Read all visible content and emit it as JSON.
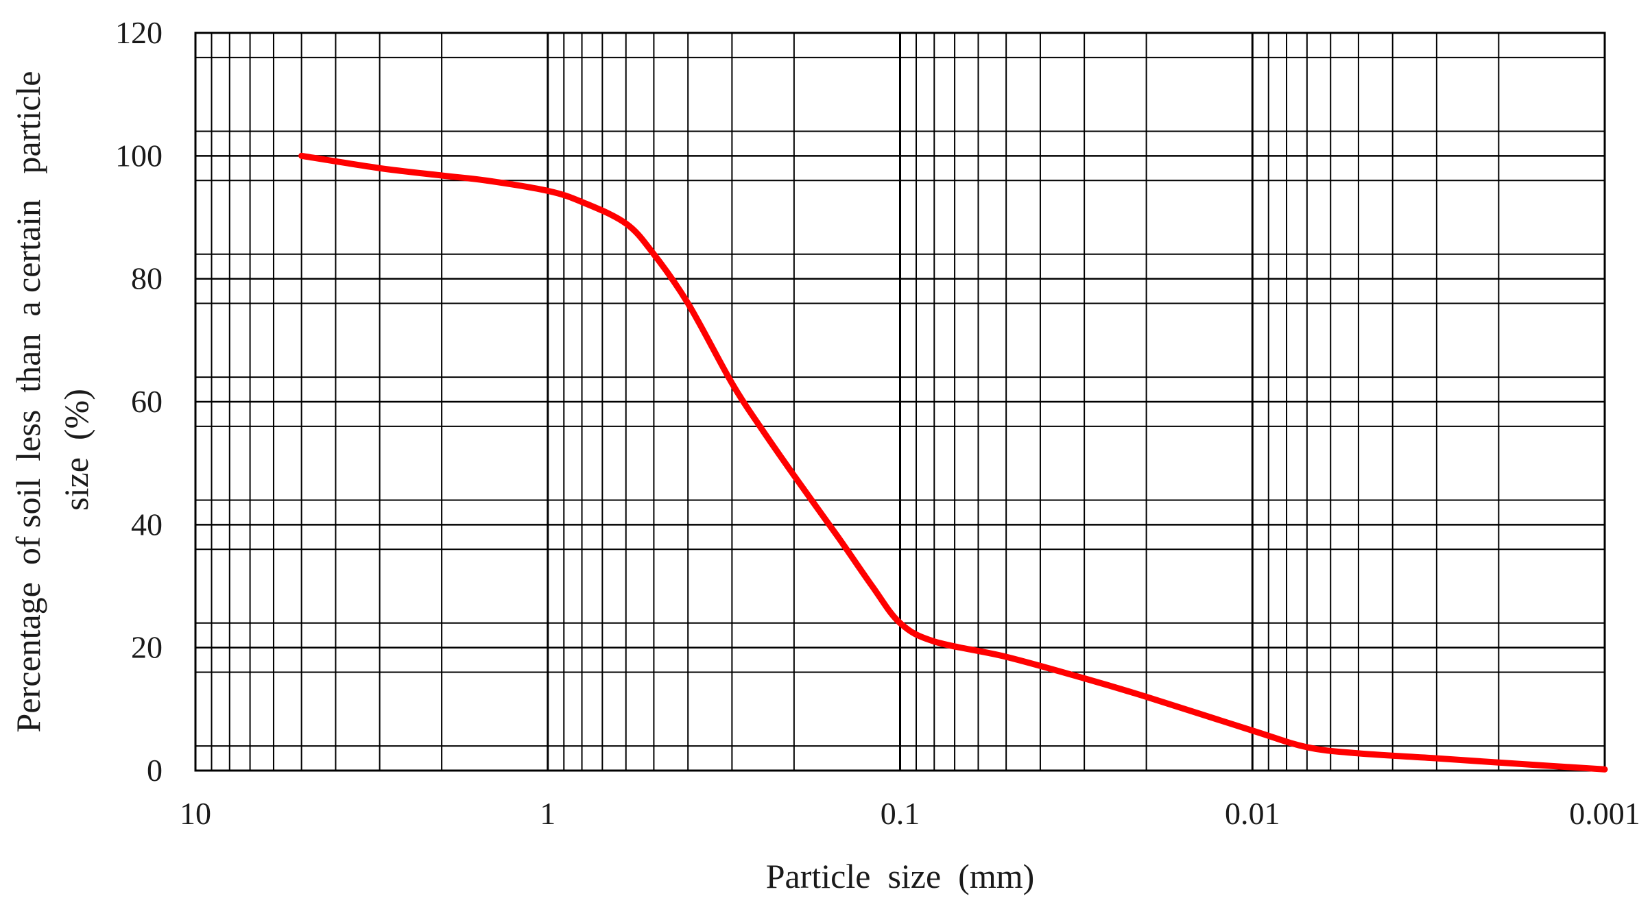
{
  "chart_data": {
    "type": "line",
    "title": "",
    "xlabel": "Particle  size  (mm)",
    "ylabel_lines": [
      "Percentage  of soil  less  than  a certain   particle",
      "size  (%)"
    ],
    "x_scale": "log",
    "x_reversed": true,
    "xlim": [
      10,
      0.001
    ],
    "ylim": [
      0,
      120
    ],
    "x_ticks": [
      10,
      1,
      0.1,
      0.01,
      0.001
    ],
    "x_tick_labels": [
      "10",
      "1",
      "0.1",
      "0.01",
      "0.001"
    ],
    "y_ticks": [
      0,
      20,
      40,
      60,
      80,
      100,
      120
    ],
    "y_tick_labels": [
      "0",
      "20",
      "40",
      "60",
      "80",
      "100",
      "120"
    ],
    "y_minor_gridlines": [
      4,
      16,
      24,
      36,
      44,
      56,
      64,
      76,
      84,
      96,
      104,
      116
    ],
    "grid": true,
    "legend": "none",
    "series": [
      {
        "color": "#ff0000",
        "x": [
          5,
          3,
          2,
          1.5,
          1,
          0.8,
          0.6,
          0.5,
          0.4,
          0.3,
          0.25,
          0.2,
          0.15,
          0.12,
          0.1,
          0.08,
          0.05,
          0.03,
          0.02,
          0.01,
          0.007,
          0.005,
          0.003,
          0.002,
          0.001
        ],
        "y": [
          100,
          98,
          96.8,
          96,
          94.3,
          92.5,
          89,
          84,
          76,
          63,
          56,
          48,
          38,
          30,
          24,
          21,
          18.5,
          15,
          12,
          6.5,
          3.8,
          2.8,
          2,
          1.3,
          0.2
        ]
      }
    ]
  }
}
